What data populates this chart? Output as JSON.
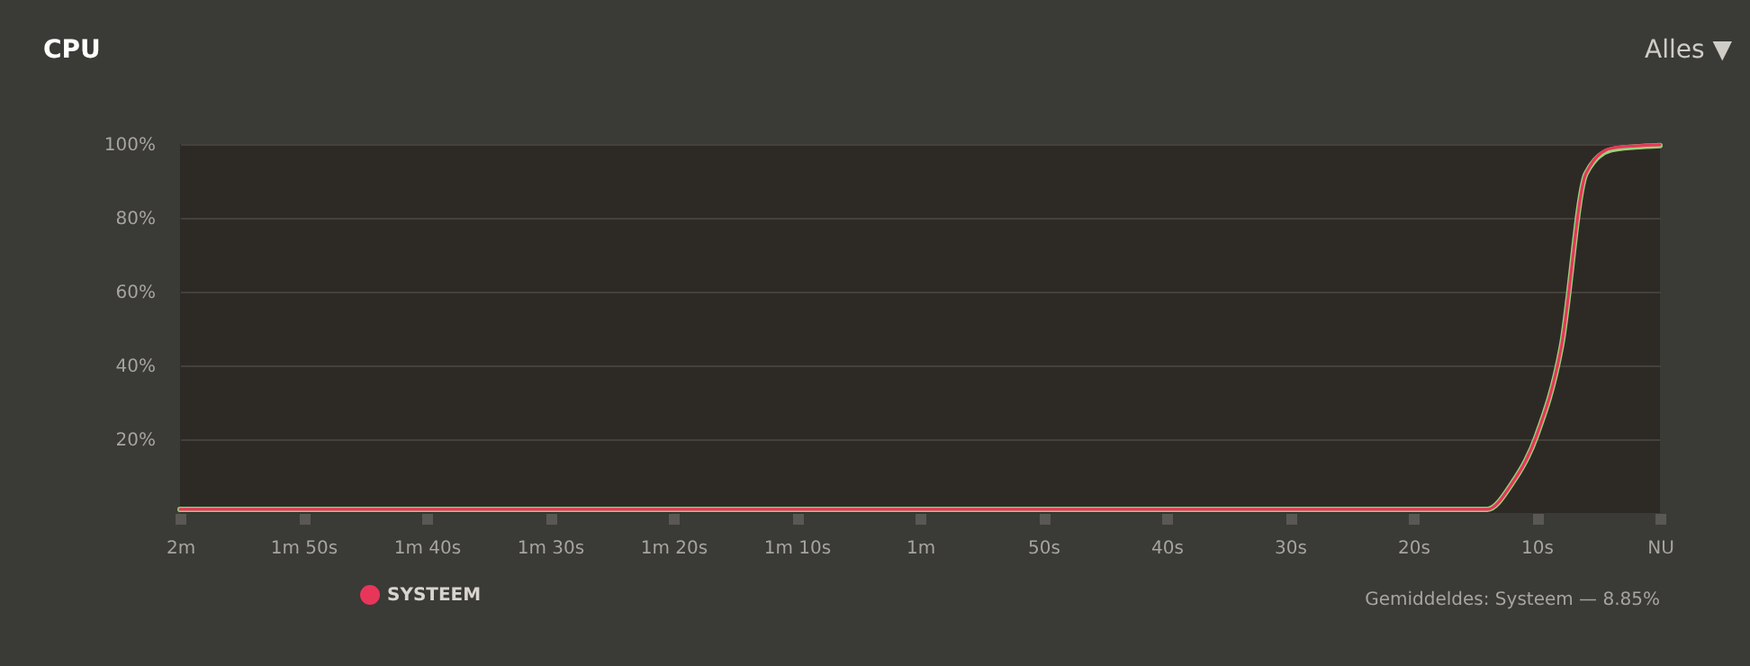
{
  "chart_data": {
    "type": "line",
    "title": "CPU",
    "annotations": [
      "Alles ▼",
      "Gemiddeldes: Systeem — 8.85%"
    ],
    "categories": [
      "2m",
      null,
      null,
      null,
      null,
      "1m 50s",
      null,
      null,
      null,
      null,
      "1m 40s",
      null,
      null,
      null,
      null,
      "1m 30s",
      null,
      null,
      null,
      null,
      "1m 20s",
      null,
      null,
      null,
      null,
      "1m 10s",
      null,
      null,
      null,
      null,
      "1m",
      null,
      null,
      null,
      null,
      "50s",
      null,
      null,
      null,
      null,
      "40s",
      null,
      null,
      null,
      null,
      "30s",
      null,
      null,
      null,
      null,
      "20s",
      null,
      null,
      null,
      null,
      "10s",
      null,
      null,
      null,
      null,
      "NU"
    ],
    "ylim": [
      0,
      100
    ],
    "yticks": [
      {
        "value": 20,
        "label": "20%"
      },
      {
        "value": 40,
        "label": "40%"
      },
      {
        "value": 60,
        "label": "60%"
      },
      {
        "value": 80,
        "label": "80%"
      },
      {
        "value": 100,
        "label": "100%"
      }
    ],
    "series": [
      {
        "color": "#98d07a",
        "values": [
          1,
          1,
          1,
          1,
          1,
          1,
          1,
          1,
          1,
          1,
          1,
          1,
          1,
          1,
          1,
          1,
          1,
          1,
          1,
          1,
          1,
          1,
          1,
          1,
          1,
          1,
          1,
          1,
          1,
          1,
          1,
          1,
          1,
          1,
          1,
          1,
          1,
          1,
          1,
          1,
          1,
          1,
          1,
          1,
          1,
          1,
          1,
          1,
          1,
          1,
          1,
          1,
          1,
          1,
          8,
          21,
          45,
          92,
          98.4,
          99.2,
          99.6
        ]
      },
      {
        "name": "SYSTEEM",
        "color": "#e8365a",
        "values": [
          1,
          1,
          1,
          1,
          1,
          1,
          1,
          1,
          1,
          1,
          1,
          1,
          1,
          1,
          1,
          1,
          1,
          1,
          1,
          1,
          1,
          1,
          1,
          1,
          1,
          1,
          1,
          1,
          1,
          1,
          1,
          1,
          1,
          1,
          1,
          1,
          1,
          1,
          1,
          1,
          1,
          1,
          1,
          1,
          1,
          1,
          1,
          1,
          1,
          1,
          1,
          1,
          1,
          1,
          8,
          21,
          45,
          92,
          98.8,
          99.5,
          99.8
        ]
      }
    ],
    "grid": "y",
    "legend": "bottom left",
    "marker": "none",
    "line_style": "solid"
  }
}
